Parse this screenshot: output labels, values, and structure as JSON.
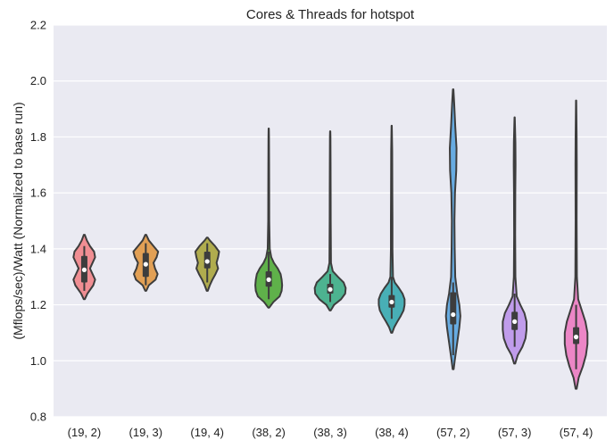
{
  "chart_data": {
    "type": "violin",
    "title": "Cores & Threads for hotspot",
    "xlabel": "",
    "ylabel": "(Mflops/sec)/Watt (Normalized to base run)",
    "ylim": [
      0.8,
      2.2
    ],
    "yticks": [
      "0.8",
      "1.0",
      "1.2",
      "1.4",
      "1.6",
      "1.8",
      "2.0",
      "2.2"
    ],
    "grid": true,
    "background": "#EAEAF2",
    "categories": [
      "(19, 2)",
      "(19, 3)",
      "(19, 4)",
      "(38, 2)",
      "(38, 3)",
      "(38, 4)",
      "(57, 2)",
      "(57, 3)",
      "(57, 4)"
    ],
    "colors": [
      "#F08E93",
      "#E2A055",
      "#B0AC4E",
      "#5FB14A",
      "#4DB390",
      "#48AFB6",
      "#67ABE1",
      "#C09CEB",
      "#EC86C6"
    ],
    "violins": [
      {
        "min": 1.22,
        "q1": 1.28,
        "median": 1.325,
        "q3": 1.375,
        "max": 1.45,
        "whisker_low": 1.25,
        "whisker_high": 1.41,
        "profile": [
          [
            1.22,
            0.02
          ],
          [
            1.24,
            0.12
          ],
          [
            1.27,
            0.35
          ],
          [
            1.29,
            0.42
          ],
          [
            1.31,
            0.32
          ],
          [
            1.33,
            0.22
          ],
          [
            1.35,
            0.32
          ],
          [
            1.37,
            0.42
          ],
          [
            1.39,
            0.38
          ],
          [
            1.41,
            0.22
          ],
          [
            1.43,
            0.1
          ],
          [
            1.45,
            0.02
          ]
        ]
      },
      {
        "min": 1.25,
        "q1": 1.3,
        "median": 1.345,
        "q3": 1.385,
        "max": 1.45,
        "whisker_low": 1.27,
        "whisker_high": 1.42,
        "profile": [
          [
            1.25,
            0.02
          ],
          [
            1.27,
            0.12
          ],
          [
            1.29,
            0.38
          ],
          [
            1.31,
            0.46
          ],
          [
            1.33,
            0.36
          ],
          [
            1.35,
            0.3
          ],
          [
            1.37,
            0.42
          ],
          [
            1.39,
            0.48
          ],
          [
            1.41,
            0.3
          ],
          [
            1.43,
            0.12
          ],
          [
            1.45,
            0.02
          ]
        ]
      },
      {
        "min": 1.25,
        "q1": 1.33,
        "median": 1.355,
        "q3": 1.39,
        "max": 1.44,
        "whisker_low": 1.28,
        "whisker_high": 1.42,
        "profile": [
          [
            1.25,
            0.02
          ],
          [
            1.27,
            0.1
          ],
          [
            1.29,
            0.2
          ],
          [
            1.31,
            0.32
          ],
          [
            1.33,
            0.42
          ],
          [
            1.35,
            0.36
          ],
          [
            1.37,
            0.42
          ],
          [
            1.39,
            0.46
          ],
          [
            1.41,
            0.3
          ],
          [
            1.43,
            0.1
          ],
          [
            1.44,
            0.02
          ]
        ]
      },
      {
        "min": 1.19,
        "q1": 1.265,
        "median": 1.29,
        "q3": 1.32,
        "max": 1.83,
        "whisker_low": 1.22,
        "whisker_high": 1.39,
        "profile": [
          [
            1.19,
            0.02
          ],
          [
            1.21,
            0.18
          ],
          [
            1.23,
            0.42
          ],
          [
            1.25,
            0.5
          ],
          [
            1.27,
            0.52
          ],
          [
            1.29,
            0.5
          ],
          [
            1.31,
            0.46
          ],
          [
            1.33,
            0.35
          ],
          [
            1.35,
            0.2
          ],
          [
            1.37,
            0.1
          ],
          [
            1.4,
            0.04
          ],
          [
            1.5,
            0.02
          ],
          [
            1.6,
            0.018
          ],
          [
            1.7,
            0.015
          ],
          [
            1.8,
            0.01
          ],
          [
            1.83,
            0.005
          ]
        ]
      },
      {
        "min": 1.18,
        "q1": 1.24,
        "median": 1.255,
        "q3": 1.275,
        "max": 1.82,
        "whisker_low": 1.21,
        "whisker_high": 1.31,
        "profile": [
          [
            1.18,
            0.02
          ],
          [
            1.2,
            0.15
          ],
          [
            1.22,
            0.42
          ],
          [
            1.24,
            0.58
          ],
          [
            1.26,
            0.6
          ],
          [
            1.28,
            0.52
          ],
          [
            1.3,
            0.3
          ],
          [
            1.32,
            0.1
          ],
          [
            1.35,
            0.03
          ],
          [
            1.5,
            0.02
          ],
          [
            1.6,
            0.018
          ],
          [
            1.7,
            0.015
          ],
          [
            1.8,
            0.01
          ],
          [
            1.82,
            0.005
          ]
        ]
      },
      {
        "min": 1.1,
        "q1": 1.19,
        "median": 1.21,
        "q3": 1.235,
        "max": 1.84,
        "whisker_low": 1.15,
        "whisker_high": 1.3,
        "profile": [
          [
            1.1,
            0.02
          ],
          [
            1.12,
            0.1
          ],
          [
            1.14,
            0.22
          ],
          [
            1.16,
            0.35
          ],
          [
            1.18,
            0.46
          ],
          [
            1.2,
            0.5
          ],
          [
            1.22,
            0.5
          ],
          [
            1.24,
            0.42
          ],
          [
            1.26,
            0.28
          ],
          [
            1.28,
            0.12
          ],
          [
            1.3,
            0.05
          ],
          [
            1.4,
            0.03
          ],
          [
            1.5,
            0.03
          ],
          [
            1.6,
            0.025
          ],
          [
            1.75,
            0.02
          ],
          [
            1.84,
            0.005
          ]
        ]
      },
      {
        "min": 0.97,
        "q1": 1.13,
        "median": 1.165,
        "q3": 1.245,
        "max": 1.97,
        "whisker_low": 1.02,
        "whisker_high": 1.28,
        "profile": [
          [
            0.97,
            0.02
          ],
          [
            1.0,
            0.06
          ],
          [
            1.04,
            0.12
          ],
          [
            1.08,
            0.18
          ],
          [
            1.12,
            0.24
          ],
          [
            1.16,
            0.28
          ],
          [
            1.2,
            0.24
          ],
          [
            1.24,
            0.16
          ],
          [
            1.3,
            0.08
          ],
          [
            1.4,
            0.06
          ],
          [
            1.5,
            0.05
          ],
          [
            1.6,
            0.07
          ],
          [
            1.68,
            0.12
          ],
          [
            1.76,
            0.13
          ],
          [
            1.84,
            0.08
          ],
          [
            1.92,
            0.04
          ],
          [
            1.97,
            0.01
          ]
        ]
      },
      {
        "min": 0.99,
        "q1": 1.11,
        "median": 1.14,
        "q3": 1.175,
        "max": 1.87,
        "whisker_low": 1.05,
        "whisker_high": 1.24,
        "profile": [
          [
            0.99,
            0.02
          ],
          [
            1.02,
            0.12
          ],
          [
            1.05,
            0.3
          ],
          [
            1.08,
            0.42
          ],
          [
            1.11,
            0.46
          ],
          [
            1.14,
            0.46
          ],
          [
            1.17,
            0.38
          ],
          [
            1.2,
            0.22
          ],
          [
            1.23,
            0.08
          ],
          [
            1.3,
            0.03
          ],
          [
            1.45,
            0.02
          ],
          [
            1.6,
            0.025
          ],
          [
            1.7,
            0.035
          ],
          [
            1.78,
            0.03
          ],
          [
            1.87,
            0.005
          ]
        ]
      },
      {
        "min": 0.9,
        "q1": 1.06,
        "median": 1.085,
        "q3": 1.12,
        "max": 1.93,
        "whisker_low": 0.97,
        "whisker_high": 1.2,
        "profile": [
          [
            0.9,
            0.02
          ],
          [
            0.94,
            0.1
          ],
          [
            0.98,
            0.26
          ],
          [
            1.02,
            0.38
          ],
          [
            1.06,
            0.44
          ],
          [
            1.1,
            0.44
          ],
          [
            1.14,
            0.36
          ],
          [
            1.18,
            0.22
          ],
          [
            1.22,
            0.08
          ],
          [
            1.3,
            0.03
          ],
          [
            1.5,
            0.02
          ],
          [
            1.7,
            0.025
          ],
          [
            1.8,
            0.02
          ],
          [
            1.93,
            0.005
          ]
        ]
      }
    ]
  }
}
